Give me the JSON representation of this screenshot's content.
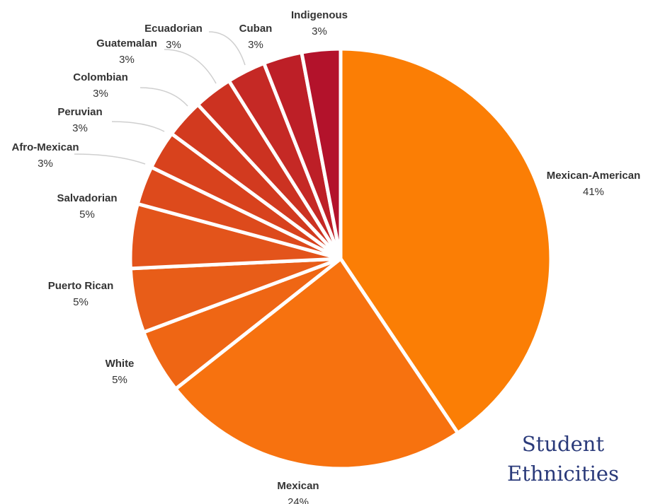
{
  "title": {
    "line1": "Student",
    "line2": "Ethnicities"
  },
  "chart_data": {
    "type": "pie",
    "title": "Student Ethnicities",
    "slices": [
      {
        "label": "Mexican-American",
        "value": 41,
        "display": "41%",
        "color": "#fb7e05"
      },
      {
        "label": "Mexican",
        "value": 24,
        "display": "24%",
        "color": "#f7720f"
      },
      {
        "label": "White",
        "value": 5,
        "display": "5%",
        "color": "#ef6614"
      },
      {
        "label": "Puerto Rican",
        "value": 5,
        "display": "5%",
        "color": "#e85d18"
      },
      {
        "label": "Salvadorian",
        "value": 5,
        "display": "5%",
        "color": "#e3541b"
      },
      {
        "label": "Afro-Mexican",
        "value": 3,
        "display": "3%",
        "color": "#dd4a1c"
      },
      {
        "label": "Peruvian",
        "value": 3,
        "display": "3%",
        "color": "#d8421d"
      },
      {
        "label": "Colombian",
        "value": 3,
        "display": "3%",
        "color": "#d23a1f"
      },
      {
        "label": "Guatemalan",
        "value": 3,
        "display": "3%",
        "color": "#cc3221"
      },
      {
        "label": "Ecuadorian",
        "value": 3,
        "display": "3%",
        "color": "#c52925"
      },
      {
        "label": "Cuban",
        "value": 3,
        "display": "3%",
        "color": "#bd1f27"
      },
      {
        "label": "Indigenous",
        "value": 3,
        "display": "3%",
        "color": "#b3122b"
      }
    ]
  }
}
